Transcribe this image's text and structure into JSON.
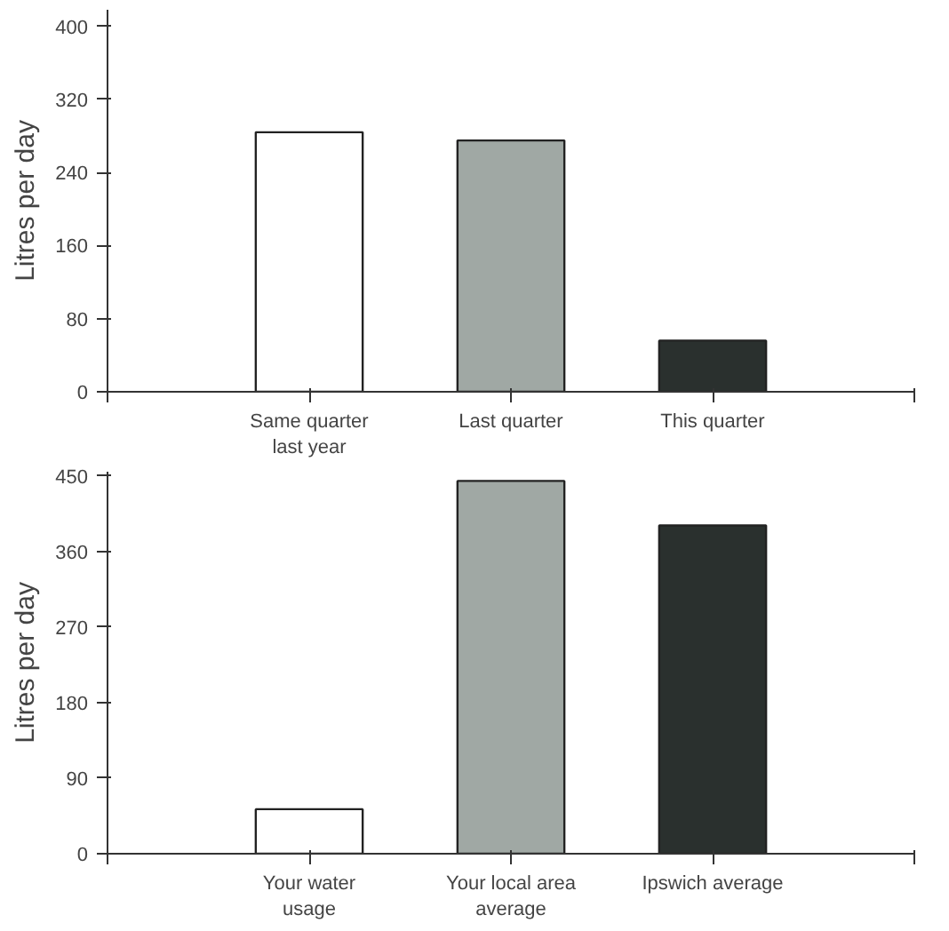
{
  "chart_data": [
    {
      "type": "bar",
      "ylabel": "Litres per day",
      "categories": [
        "Same quarter\nlast year",
        "Last quarter",
        "This quarter"
      ],
      "values": [
        284,
        275,
        56
      ],
      "colors": [
        "#ffffff",
        "#a0a8a4",
        "#2a302e"
      ],
      "ylim": [
        0,
        418
      ],
      "yticks": [
        0,
        80,
        160,
        240,
        320,
        400
      ],
      "grid": false
    },
    {
      "type": "bar",
      "ylabel": "Litres per day",
      "categories": [
        "Your water\nusage",
        "Your local area\naverage",
        "Ipswich average"
      ],
      "values": [
        53,
        444,
        391
      ],
      "colors": [
        "#ffffff",
        "#a0a8a4",
        "#2a302e"
      ],
      "ylim": [
        0,
        455
      ],
      "yticks": [
        0,
        90,
        180,
        270,
        360,
        450
      ],
      "grid": false
    }
  ]
}
